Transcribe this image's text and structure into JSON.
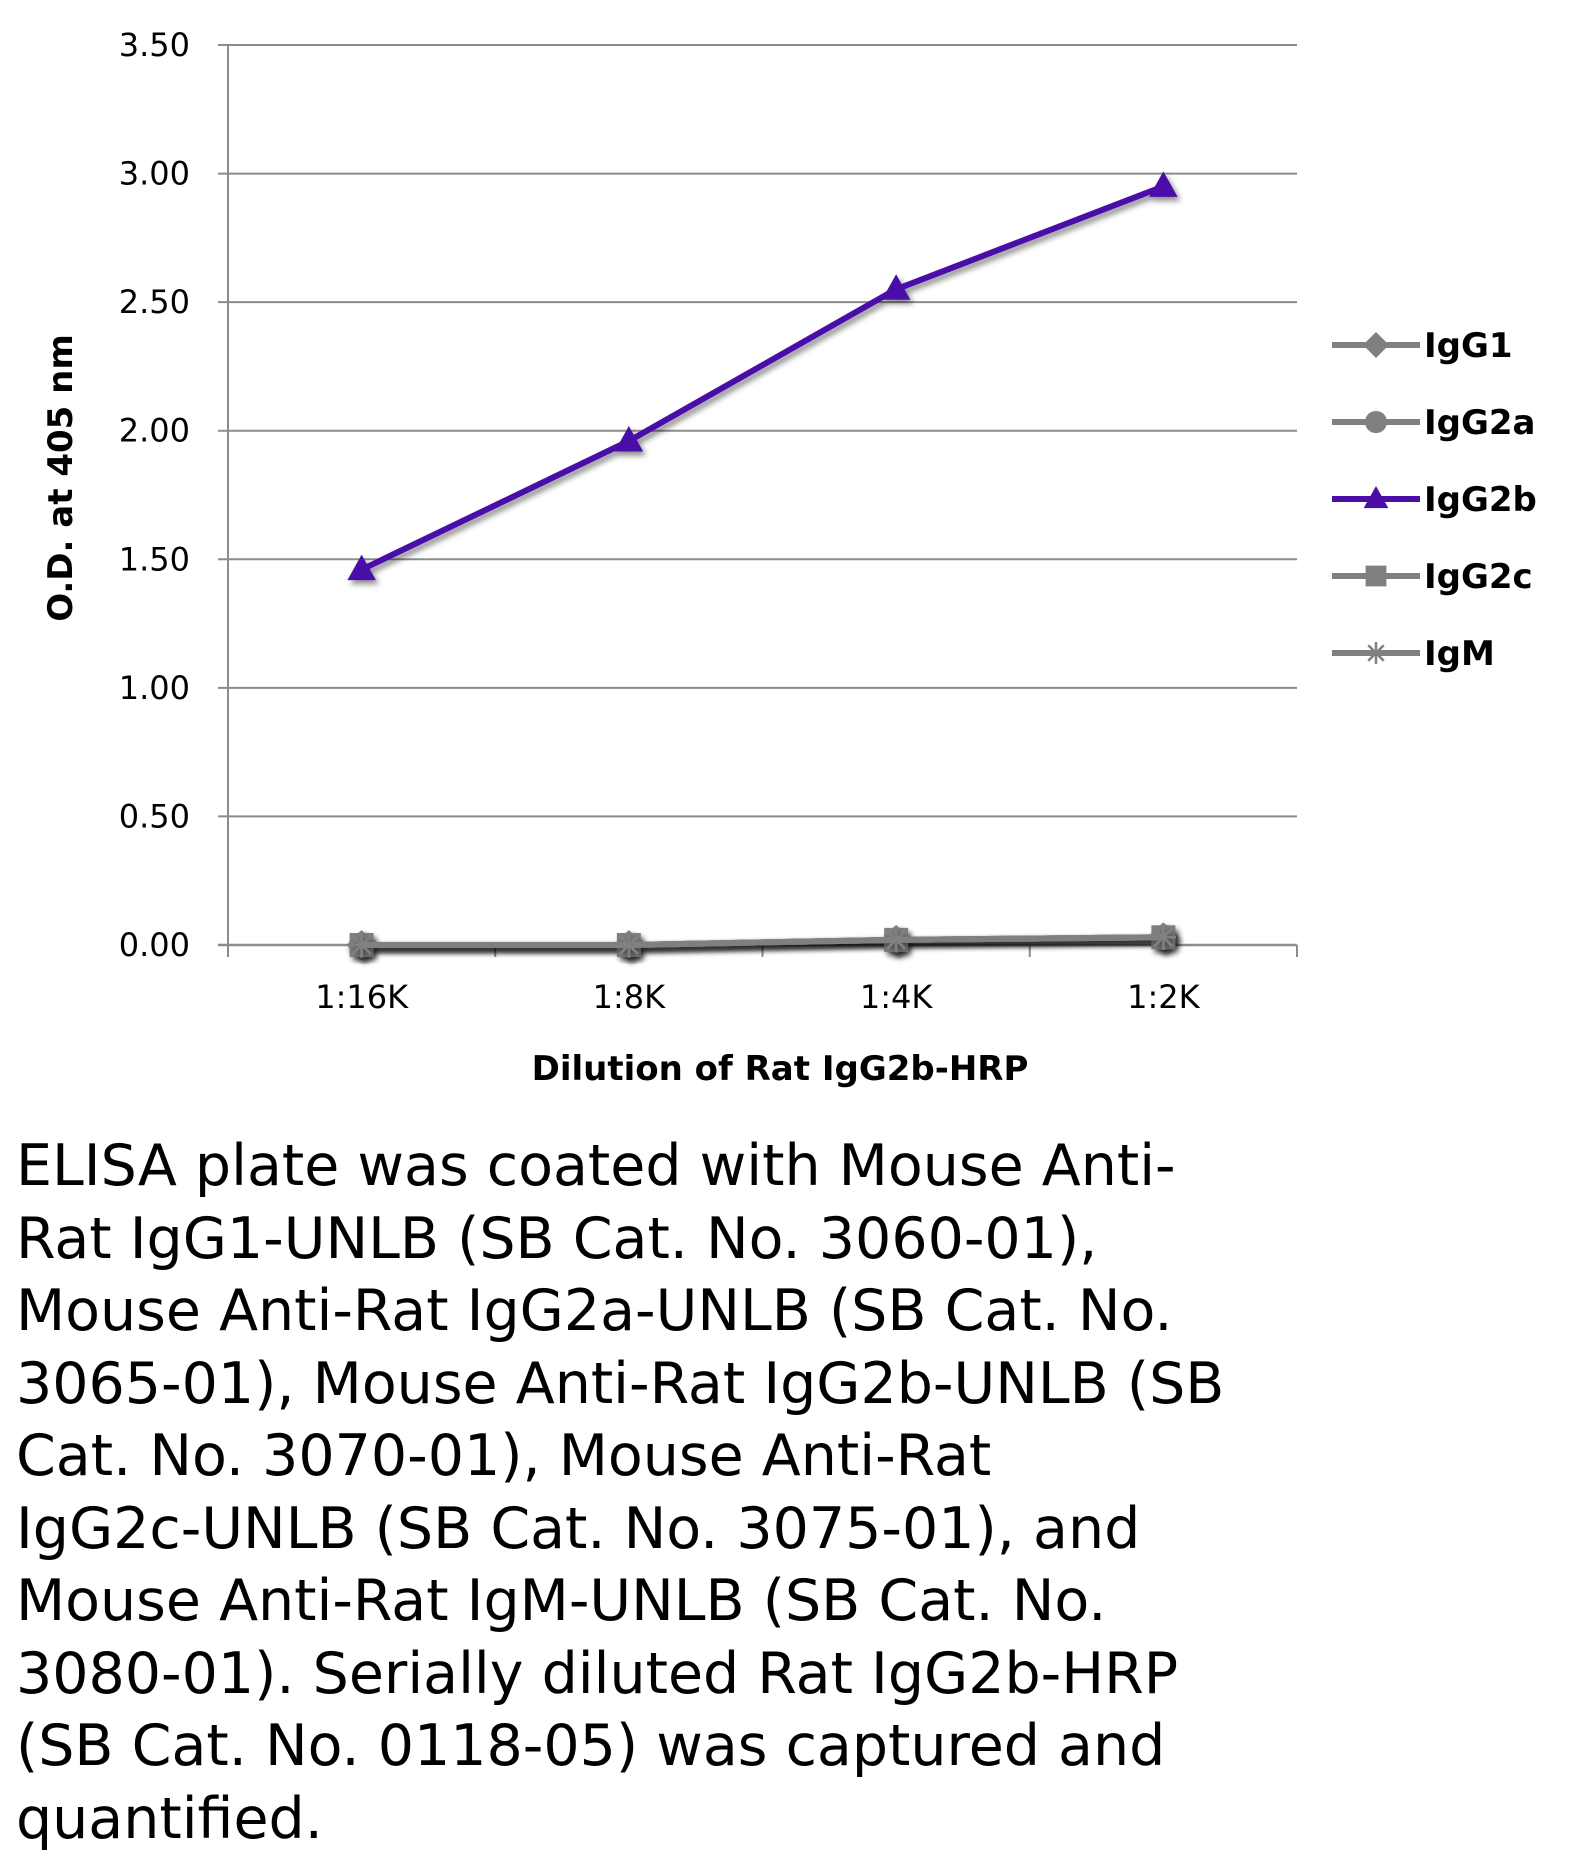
{
  "chart_data": {
    "type": "line",
    "title": "",
    "xlabel": "Dilution of Rat IgG2b-HRP",
    "ylabel": "O.D. at 405 nm",
    "categories": [
      "1:16K",
      "1:8K",
      "1:4K",
      "1:2K"
    ],
    "ylim": [
      0,
      3.5
    ],
    "yticks": [
      0.0,
      0.5,
      1.0,
      1.5,
      2.0,
      2.5,
      3.0,
      3.5
    ],
    "ytick_labels": [
      "0.00",
      "0.50",
      "1.00",
      "1.50",
      "2.00",
      "2.50",
      "3.00",
      "3.50"
    ],
    "grid": true,
    "legend": "right",
    "series": [
      {
        "name": "IgG1",
        "values": [
          0.0,
          0.0,
          0.02,
          0.03
        ],
        "color": "#808080",
        "marker": "diamond"
      },
      {
        "name": "IgG2a",
        "values": [
          0.0,
          0.0,
          0.02,
          0.03
        ],
        "color": "#808080",
        "marker": "circle"
      },
      {
        "name": "IgG2b",
        "values": [
          1.46,
          1.96,
          2.55,
          2.95
        ],
        "color": "#4B0FA8",
        "marker": "triangle"
      },
      {
        "name": "IgG2c",
        "values": [
          0.0,
          0.0,
          0.02,
          0.03
        ],
        "color": "#808080",
        "marker": "square"
      },
      {
        "name": "IgM",
        "values": [
          0.0,
          0.0,
          0.02,
          0.03
        ],
        "color": "#808080",
        "marker": "star"
      }
    ]
  },
  "caption": {
    "lines": [
      "ELISA plate was coated with Mouse Anti-",
      "Rat IgG1-UNLB (SB Cat. No. 3060-01),",
      "Mouse Anti-Rat IgG2a-UNLB (SB Cat. No.",
      "3065-01), Mouse Anti-Rat IgG2b-UNLB (SB",
      "Cat. No. 3070-01), Mouse Anti-Rat",
      "IgG2c-UNLB (SB Cat. No. 3075-01), and",
      "Mouse Anti-Rat IgM-UNLB (SB Cat. No.",
      "3080-01).  Serially diluted Rat IgG2b-HRP",
      "(SB Cat. No. 0118-05) was captured and",
      "quantified."
    ]
  }
}
